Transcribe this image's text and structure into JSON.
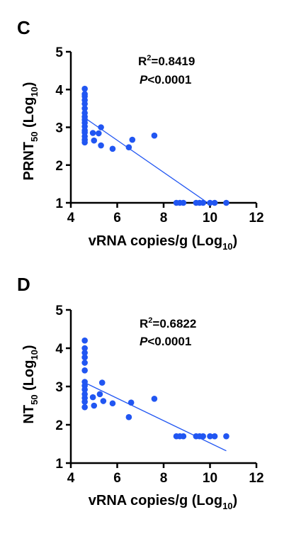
{
  "chart_data": [
    {
      "type": "scatter",
      "panel": "C",
      "xlabel": "vRNA copies/g (Log10)",
      "xlabel_main": "vRNA copies/g (Log",
      "xlabel_sub": "10",
      "xlabel_close": ")",
      "ylabel": "PRNT50 (Log10)",
      "ylabel_main": "PRNT",
      "ylabel_sub1": "50",
      "ylabel_mid": " (Log",
      "ylabel_sub2": "10",
      "ylabel_close": ")",
      "xlim": [
        4,
        12
      ],
      "ylim": [
        1,
        5
      ],
      "xticks": [
        "4",
        "6",
        "8",
        "10",
        "12"
      ],
      "yticks": [
        "1",
        "2",
        "3",
        "4",
        "5"
      ],
      "annotation_r2_main": "R",
      "annotation_r2_sup": "2",
      "annotation_r2_value": "=0.8419",
      "annotation_p_italic": "P",
      "annotation_p_value": "<0.0001",
      "point_color": "#2156f2",
      "line_color": "#2156f2",
      "points": [
        {
          "x": 4.6,
          "y": 4.02
        },
        {
          "x": 4.6,
          "y": 3.88
        },
        {
          "x": 4.6,
          "y": 3.82
        },
        {
          "x": 4.6,
          "y": 3.72
        },
        {
          "x": 4.6,
          "y": 3.62
        },
        {
          "x": 4.6,
          "y": 3.5
        },
        {
          "x": 4.6,
          "y": 3.38
        },
        {
          "x": 4.6,
          "y": 3.28
        },
        {
          "x": 4.6,
          "y": 3.2
        },
        {
          "x": 4.6,
          "y": 3.12
        },
        {
          "x": 4.6,
          "y": 3.02
        },
        {
          "x": 4.6,
          "y": 2.92
        },
        {
          "x": 4.6,
          "y": 2.86
        },
        {
          "x": 4.6,
          "y": 2.76
        },
        {
          "x": 4.6,
          "y": 2.67
        },
        {
          "x": 4.6,
          "y": 2.6
        },
        {
          "x": 4.95,
          "y": 2.85
        },
        {
          "x": 5.0,
          "y": 2.65
        },
        {
          "x": 5.2,
          "y": 2.84
        },
        {
          "x": 5.3,
          "y": 3.0
        },
        {
          "x": 5.3,
          "y": 2.52
        },
        {
          "x": 5.8,
          "y": 2.43
        },
        {
          "x": 6.5,
          "y": 2.47
        },
        {
          "x": 6.65,
          "y": 2.67
        },
        {
          "x": 7.6,
          "y": 2.78
        },
        {
          "x": 8.55,
          "y": 1.0
        },
        {
          "x": 8.7,
          "y": 1.0
        },
        {
          "x": 8.85,
          "y": 1.0
        },
        {
          "x": 9.4,
          "y": 1.0
        },
        {
          "x": 9.55,
          "y": 1.0
        },
        {
          "x": 9.7,
          "y": 1.0
        },
        {
          "x": 10.0,
          "y": 1.0
        },
        {
          "x": 10.2,
          "y": 1.0
        },
        {
          "x": 10.7,
          "y": 1.0
        }
      ],
      "regression": {
        "x": [
          4.6,
          9.9
        ],
        "y": [
          3.25,
          1.0
        ]
      }
    },
    {
      "type": "scatter",
      "panel": "D",
      "xlabel": "vRNA copies/g (Log10)",
      "xlabel_main": "vRNA copies/g (Log",
      "xlabel_sub": "10",
      "xlabel_close": ")",
      "ylabel": "NT50 (Log10)",
      "ylabel_main": "NT",
      "ylabel_sub1": "50",
      "ylabel_mid": " (Log",
      "ylabel_sub2": "10",
      "ylabel_close": ")",
      "xlim": [
        4,
        12
      ],
      "ylim": [
        1,
        5
      ],
      "xticks": [
        "4",
        "6",
        "8",
        "10",
        "12"
      ],
      "yticks": [
        "1",
        "2",
        "3",
        "4",
        "5"
      ],
      "annotation_r2_main": "R",
      "annotation_r2_sup": "2",
      "annotation_r2_value": "=0.6822",
      "annotation_p_italic": "P",
      "annotation_p_value": "<0.0001",
      "point_color": "#2156f2",
      "line_color": "#2156f2",
      "points": [
        {
          "x": 4.6,
          "y": 4.2
        },
        {
          "x": 4.6,
          "y": 4.0
        },
        {
          "x": 4.6,
          "y": 3.88
        },
        {
          "x": 4.6,
          "y": 3.76
        },
        {
          "x": 4.6,
          "y": 3.62
        },
        {
          "x": 4.6,
          "y": 3.42
        },
        {
          "x": 4.6,
          "y": 3.12
        },
        {
          "x": 4.6,
          "y": 3.02
        },
        {
          "x": 4.6,
          "y": 2.92
        },
        {
          "x": 4.6,
          "y": 2.8
        },
        {
          "x": 4.6,
          "y": 2.7
        },
        {
          "x": 4.6,
          "y": 2.6
        },
        {
          "x": 4.6,
          "y": 2.46
        },
        {
          "x": 4.95,
          "y": 2.72
        },
        {
          "x": 5.0,
          "y": 2.5
        },
        {
          "x": 5.25,
          "y": 2.8
        },
        {
          "x": 5.35,
          "y": 3.1
        },
        {
          "x": 5.4,
          "y": 2.62
        },
        {
          "x": 5.8,
          "y": 2.56
        },
        {
          "x": 6.5,
          "y": 2.2
        },
        {
          "x": 6.6,
          "y": 2.58
        },
        {
          "x": 7.6,
          "y": 2.68
        },
        {
          "x": 8.55,
          "y": 1.7
        },
        {
          "x": 8.7,
          "y": 1.7
        },
        {
          "x": 8.85,
          "y": 1.7
        },
        {
          "x": 9.4,
          "y": 1.7
        },
        {
          "x": 9.55,
          "y": 1.7
        },
        {
          "x": 9.7,
          "y": 1.7
        },
        {
          "x": 10.0,
          "y": 1.7
        },
        {
          "x": 10.2,
          "y": 1.7
        },
        {
          "x": 10.7,
          "y": 1.7
        }
      ],
      "regression": {
        "x": [
          4.6,
          10.7
        ],
        "y": [
          3.1,
          1.32
        ]
      }
    }
  ]
}
